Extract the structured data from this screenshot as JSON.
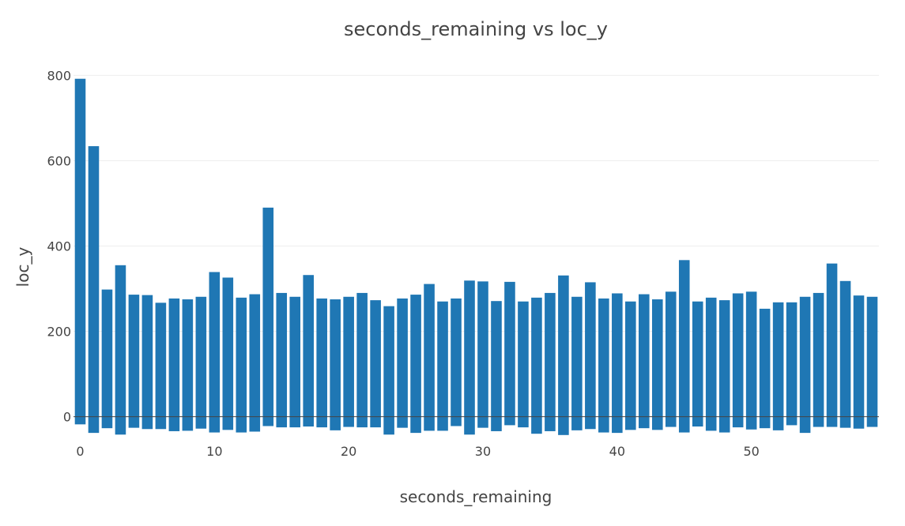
{
  "chart_data": {
    "type": "bar",
    "title": "seconds_remaining vs loc_y",
    "xlabel": "seconds_remaining",
    "ylabel": "loc_y",
    "color": "#1f77b4",
    "grid": true,
    "xlim": [
      -0.5,
      59.5
    ],
    "ylim": [
      -60,
      810
    ],
    "xticks": [
      0,
      10,
      20,
      30,
      40,
      50
    ],
    "yticks": [
      0,
      200,
      400,
      600,
      800
    ],
    "x": [
      0,
      1,
      2,
      3,
      4,
      5,
      6,
      7,
      8,
      9,
      10,
      11,
      12,
      13,
      14,
      15,
      16,
      17,
      18,
      19,
      20,
      21,
      22,
      23,
      24,
      25,
      26,
      27,
      28,
      29,
      30,
      31,
      32,
      33,
      34,
      35,
      36,
      37,
      38,
      39,
      40,
      41,
      42,
      43,
      44,
      45,
      46,
      47,
      48,
      49,
      50,
      51,
      52,
      53,
      54,
      55,
      56,
      57,
      58,
      59
    ],
    "top": [
      792,
      634,
      298,
      355,
      286,
      285,
      267,
      277,
      275,
      281,
      339,
      326,
      279,
      287,
      490,
      290,
      281,
      332,
      277,
      275,
      281,
      290,
      273,
      259,
      277,
      286,
      311,
      270,
      277,
      319,
      317,
      271,
      316,
      270,
      279,
      290,
      331,
      281,
      315,
      277,
      289,
      270,
      287,
      275,
      293,
      367,
      270,
      279,
      273,
      289,
      293,
      253,
      268,
      268,
      281,
      290,
      359,
      318,
      284,
      281
    ],
    "bottom": [
      -18,
      -38,
      -27,
      -42,
      -26,
      -29,
      -29,
      -34,
      -33,
      -28,
      -37,
      -31,
      -37,
      -35,
      -22,
      -25,
      -25,
      -23,
      -25,
      -32,
      -24,
      -25,
      -25,
      -42,
      -26,
      -38,
      -33,
      -33,
      -22,
      -42,
      -26,
      -34,
      -20,
      -25,
      -40,
      -34,
      -43,
      -32,
      -29,
      -37,
      -38,
      -31,
      -27,
      -31,
      -24,
      -37,
      -23,
      -33,
      -37,
      -25,
      -30,
      -27,
      -32,
      -20,
      -38,
      -24,
      -24,
      -26,
      -28,
      -24
    ]
  }
}
